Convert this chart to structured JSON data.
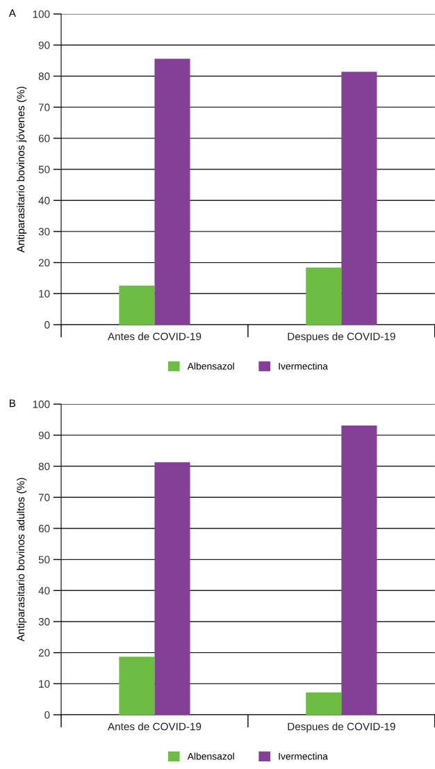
{
  "chart_data": [
    {
      "type": "bar",
      "annotations": [
        "A"
      ],
      "ylabel": "Antiparasitario bovinos jóvenes (%)",
      "categories": [
        "Antes de COVID-19",
        "Despues de COVID-19"
      ],
      "series": [
        {
          "name": "Albensazol",
          "color": "#6dbd45",
          "values": [
            12.6,
            18.4
          ]
        },
        {
          "name": "Ivermectina",
          "color": "#843f96",
          "values": [
            85.6,
            81.4
          ]
        }
      ],
      "ylim": [
        0,
        100
      ],
      "yticks": [
        0,
        10,
        20,
        30,
        40,
        50,
        60,
        70,
        80,
        90,
        100
      ],
      "grid": "y",
      "legend": "bottom"
    },
    {
      "type": "bar",
      "annotations": [
        "B"
      ],
      "ylabel": "Antiparasitario bovinos adultos (%)",
      "categories": [
        "Antes de COVID-19",
        "Despues de COVID-19"
      ],
      "series": [
        {
          "name": "Albensazol",
          "color": "#6dbd45",
          "values": [
            18.7,
            7.2
          ]
        },
        {
          "name": "Ivermectina",
          "color": "#843f96",
          "values": [
            81.3,
            93.1
          ]
        }
      ],
      "ylim": [
        0,
        100
      ],
      "yticks": [
        0,
        10,
        20,
        30,
        40,
        50,
        60,
        70,
        80,
        90,
        100
      ],
      "grid": "y",
      "legend": "bottom"
    }
  ]
}
